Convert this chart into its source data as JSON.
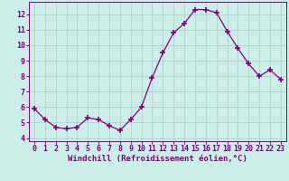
{
  "x": [
    0,
    1,
    2,
    3,
    4,
    5,
    6,
    7,
    8,
    9,
    10,
    11,
    12,
    13,
    14,
    15,
    16,
    17,
    18,
    19,
    20,
    21,
    22,
    23
  ],
  "y": [
    5.9,
    5.2,
    4.7,
    4.6,
    4.7,
    5.3,
    5.2,
    4.8,
    4.5,
    5.2,
    6.0,
    7.9,
    9.5,
    10.8,
    11.4,
    12.3,
    12.3,
    12.1,
    10.9,
    9.8,
    8.8,
    8.0,
    8.4,
    7.8
  ],
  "line_color": "#800080",
  "marker": "+",
  "marker_size": 4,
  "marker_lw": 1.2,
  "bg_color": "#cceee8",
  "grid_color": "#b0c8c8",
  "xlabel": "Windchill (Refroidissement éolien,°C)",
  "xlabel_fontsize": 6.5,
  "tick_fontsize": 6.0,
  "ylim": [
    3.8,
    12.8
  ],
  "yticks": [
    4,
    5,
    6,
    7,
    8,
    9,
    10,
    11,
    12
  ],
  "xlim": [
    -0.5,
    23.5
  ],
  "xticks": [
    0,
    1,
    2,
    3,
    4,
    5,
    6,
    7,
    8,
    9,
    10,
    11,
    12,
    13,
    14,
    15,
    16,
    17,
    18,
    19,
    20,
    21,
    22,
    23
  ]
}
